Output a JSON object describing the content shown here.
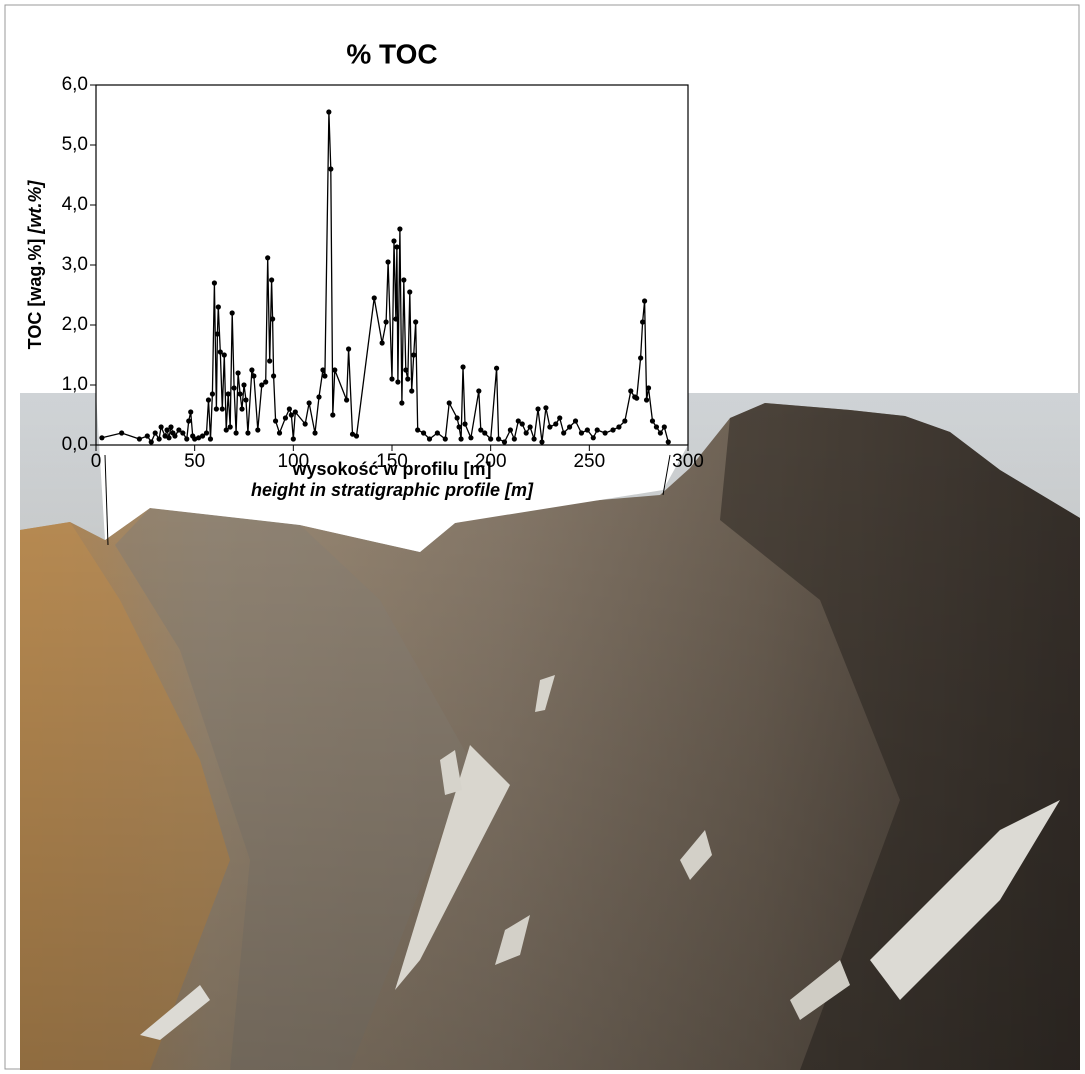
{
  "chart_data": {
    "type": "line",
    "title": "% TOC",
    "ylabel": "TOC [wag.%]",
    "ylabel_en": "[wt.%]",
    "xlabel": "wysokość w profilu [m]",
    "xlabel_en": "height in stratigraphic profile [m]",
    "color": "#000000",
    "x": [
      3,
      13,
      22,
      26,
      28,
      30,
      32,
      33,
      35,
      36,
      37,
      38,
      39,
      40,
      42,
      44,
      46,
      47,
      48,
      49,
      50,
      52,
      54,
      56,
      57,
      58,
      59,
      60,
      61,
      61.5,
      62,
      63,
      64,
      65,
      66,
      67,
      68,
      69,
      70,
      71,
      72,
      73,
      74,
      75,
      76,
      77,
      79,
      80,
      82,
      84,
      86,
      87,
      88,
      89,
      89.5,
      90,
      91,
      93,
      96,
      98,
      99,
      100,
      101,
      106,
      108,
      111,
      113,
      115,
      116,
      118,
      119,
      120,
      121,
      127,
      128,
      130,
      132,
      141,
      145,
      147,
      148,
      150,
      151,
      152,
      152.5,
      153,
      154,
      155,
      156,
      157,
      158,
      159,
      160,
      161,
      162,
      163,
      166,
      169,
      173,
      177,
      179,
      183,
      184,
      185,
      186,
      187,
      190,
      194,
      195,
      197,
      200,
      203,
      204,
      207,
      210,
      212,
      214,
      216,
      218,
      220,
      222,
      224,
      226,
      228,
      230,
      233,
      235,
      237,
      240,
      243,
      246,
      249,
      252,
      254,
      258,
      262,
      265,
      268,
      271,
      273,
      274,
      276,
      277,
      278,
      279,
      280,
      282,
      284,
      286,
      288,
      290
    ],
    "values": [
      0.12,
      0.2,
      0.1,
      0.15,
      0.05,
      0.2,
      0.1,
      0.3,
      0.15,
      0.25,
      0.12,
      0.3,
      0.2,
      0.15,
      0.25,
      0.2,
      0.1,
      0.4,
      0.55,
      0.15,
      0.1,
      0.12,
      0.15,
      0.2,
      0.75,
      0.1,
      0.85,
      2.7,
      0.6,
      1.85,
      2.3,
      1.55,
      0.6,
      1.5,
      0.25,
      0.85,
      0.3,
      2.2,
      0.95,
      0.2,
      1.2,
      0.85,
      0.6,
      1.0,
      0.75,
      0.2,
      1.25,
      1.15,
      0.25,
      1.0,
      1.05,
      3.12,
      1.4,
      2.75,
      2.1,
      1.15,
      0.4,
      0.2,
      0.45,
      0.6,
      0.5,
      0.1,
      0.55,
      0.35,
      0.7,
      0.2,
      0.8,
      1.25,
      1.15,
      5.55,
      4.6,
      0.5,
      1.25,
      0.75,
      1.6,
      0.18,
      0.15,
      2.45,
      1.7,
      2.05,
      3.05,
      1.1,
      3.4,
      2.1,
      3.3,
      1.05,
      3.6,
      0.7,
      2.75,
      1.25,
      1.1,
      2.55,
      0.9,
      1.5,
      2.05,
      0.25,
      0.2,
      0.1,
      0.2,
      0.1,
      0.7,
      0.45,
      0.3,
      0.1,
      1.3,
      0.35,
      0.12,
      0.9,
      0.25,
      0.2,
      0.1,
      1.28,
      0.1,
      0.05,
      0.25,
      0.1,
      0.4,
      0.35,
      0.2,
      0.3,
      0.1,
      0.6,
      0.05,
      0.62,
      0.3,
      0.35,
      0.45,
      0.2,
      0.3,
      0.4,
      0.2,
      0.25,
      0.12,
      0.25,
      0.2,
      0.25,
      0.3,
      0.4,
      0.9,
      0.8,
      0.78,
      1.45,
      2.05,
      2.4,
      0.75,
      0.95,
      0.4,
      0.3,
      0.2,
      0.3,
      0.05
    ],
    "xlim": [
      0,
      300
    ],
    "xticks": [
      0,
      50,
      100,
      150,
      200,
      250,
      300
    ],
    "ylim": [
      0,
      6
    ],
    "yticks": [
      {
        "value": 0,
        "label": "0,0"
      },
      {
        "value": 1,
        "label": "1,0"
      },
      {
        "value": 2,
        "label": "2,0"
      },
      {
        "value": 3,
        "label": "3,0"
      },
      {
        "value": 4,
        "label": "4,0"
      },
      {
        "value": 5,
        "label": "5,0"
      },
      {
        "value": 6,
        "label": "6,0"
      }
    ]
  }
}
